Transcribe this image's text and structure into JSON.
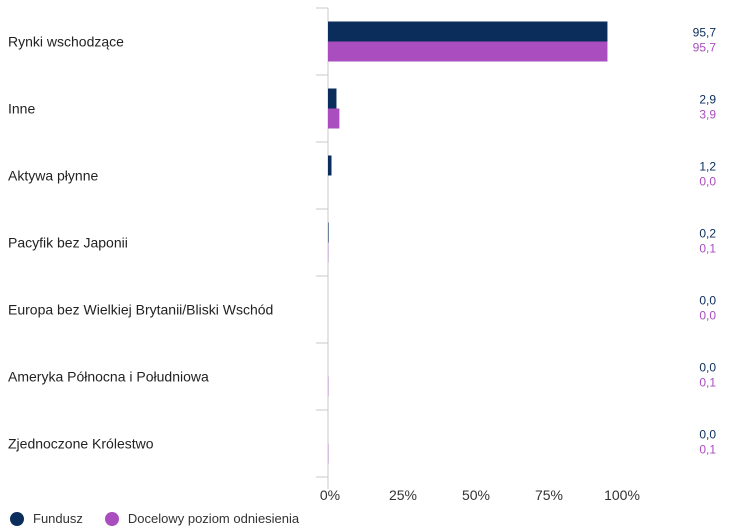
{
  "chart_data": {
    "type": "bar",
    "orientation": "horizontal",
    "categories": [
      "Rynki wschodzące",
      "Inne",
      "Aktywa płynne",
      "Pacyfik bez Japonii",
      "Europa bez Wielkiej Brytanii/Bliski Wschód",
      "Ameryka Północna i Południowa",
      "Zjednoczone Królestwo"
    ],
    "series": [
      {
        "name": "Fundusz",
        "color": "#0b2d5b",
        "values": [
          95.7,
          2.9,
          1.2,
          0.2,
          0.0,
          0.0,
          0.0
        ],
        "labels": [
          "95,7",
          "2,9",
          "1,2",
          "0,2",
          "0,0",
          "0,0",
          "0,0"
        ]
      },
      {
        "name": "Docelowy poziom odniesienia",
        "color": "#a94dbf",
        "values": [
          95.7,
          3.9,
          0.0,
          0.1,
          0.0,
          0.1,
          0.1
        ],
        "labels": [
          "95,7",
          "3,9",
          "0,0",
          "0,1",
          "0,0",
          "0,1",
          "0,1"
        ]
      }
    ],
    "xlim": [
      0,
      125
    ],
    "xticks": [
      0,
      25,
      50,
      75,
      100
    ],
    "xtick_labels": [
      "0%",
      "25%",
      "50%",
      "75%",
      "100%"
    ],
    "grid": false,
    "legend_position": "bottom-left"
  }
}
